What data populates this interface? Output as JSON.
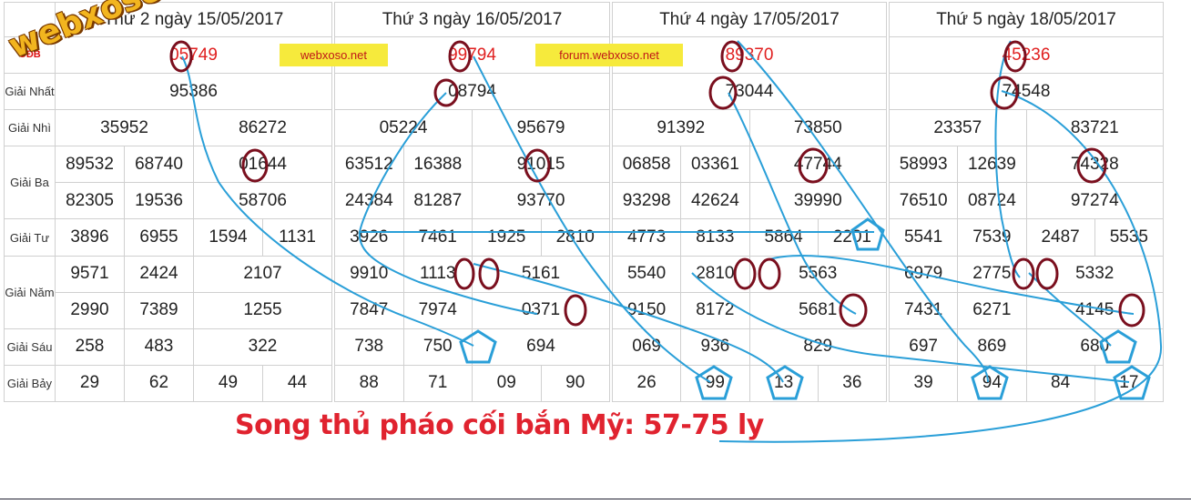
{
  "labels": {
    "gdb": "GĐB",
    "nhat": "Giải Nhất",
    "nhi": "Giải Nhì",
    "ba": "Giải Ba",
    "tu": "Giải Tư",
    "nam": "Giải Năm",
    "sau": "Giải Sáu",
    "bay": "Giải Bảy"
  },
  "watermark": "webxoso.net",
  "badges": {
    "site": "webxoso.net",
    "forum": "forum.webxoso.net"
  },
  "caption": "Song thủ pháo cối bắn Mỹ: 57-75 ly",
  "days": [
    {
      "header": "Thứ 2 ngày 15/05/2017",
      "gdb": "05749",
      "nhat": "95386",
      "nhi": [
        "35952",
        "86272"
      ],
      "ba": [
        "89532",
        "68740",
        "01644",
        "82305",
        "19536",
        "58706"
      ],
      "tu": [
        "3896",
        "6955",
        "1594",
        "1131"
      ],
      "nam": [
        "9571",
        "2424",
        "2107",
        "2990",
        "7389",
        "1255"
      ],
      "sau": [
        "258",
        "483",
        "322"
      ],
      "bay": [
        "29",
        "62",
        "49",
        "44"
      ]
    },
    {
      "header": "Thứ 3 ngày 16/05/2017",
      "gdb": "99794",
      "nhat": "08794",
      "nhi": [
        "05224",
        "95679"
      ],
      "ba": [
        "63512",
        "16388",
        "91015",
        "24384",
        "81287",
        "93770"
      ],
      "tu": [
        "3926",
        "7461",
        "1925",
        "2810"
      ],
      "nam": [
        "9910",
        "1113",
        "5161",
        "7847",
        "7974",
        "0371"
      ],
      "sau": [
        "738",
        "750",
        "694"
      ],
      "bay": [
        "88",
        "71",
        "09",
        "90"
      ]
    },
    {
      "header": "Thứ 4 ngày 17/05/2017",
      "gdb": "89370",
      "nhat": "73044",
      "nhi": [
        "91392",
        "73850"
      ],
      "ba": [
        "06858",
        "03361",
        "47744",
        "93298",
        "42624",
        "39990"
      ],
      "tu": [
        "4773",
        "8133",
        "5864",
        "2201"
      ],
      "nam": [
        "5540",
        "2810",
        "5563",
        "9150",
        "8172",
        "5681"
      ],
      "sau": [
        "069",
        "936",
        "829"
      ],
      "bay": [
        "26",
        "99",
        "13",
        "36"
      ]
    },
    {
      "header": "Thứ 5 ngày 18/05/2017",
      "gdb": "45236",
      "nhat": "74548",
      "nhi": [
        "23357",
        "83721"
      ],
      "ba": [
        "58993",
        "12639",
        "74328",
        "76510",
        "08724",
        "97274"
      ],
      "tu": [
        "5541",
        "7539",
        "2487",
        "5535"
      ],
      "nam": [
        "6979",
        "2775",
        "5332",
        "7431",
        "6271",
        "4145"
      ],
      "sau": [
        "697",
        "869",
        "680"
      ],
      "bay": [
        "39",
        "94",
        "84",
        "17"
      ]
    }
  ],
  "colors": {
    "circle": "#7a0f1e",
    "line": "#2a9fd8",
    "red": "#e02020",
    "badge": "#f6ea3c"
  }
}
